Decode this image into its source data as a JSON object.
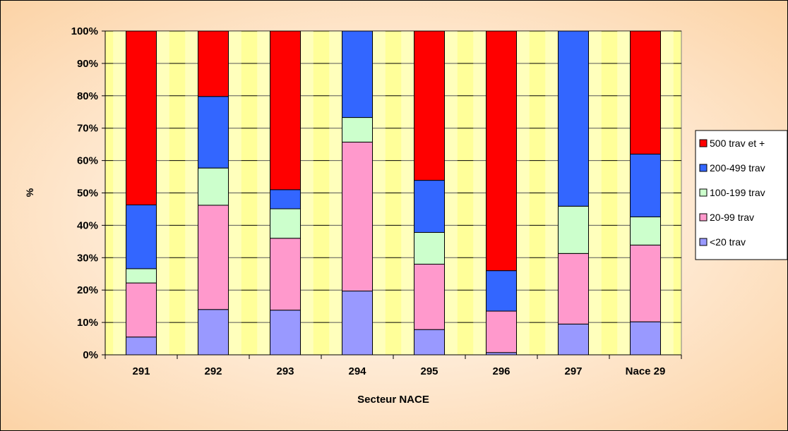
{
  "chart_data": {
    "type": "bar",
    "stacked": true,
    "categories": [
      "291",
      "292",
      "293",
      "294",
      "295",
      "296",
      "297",
      "Nace 29"
    ],
    "xlabel": "Secteur NACE",
    "ylabel": "%",
    "ylim": [
      0,
      100
    ],
    "y_ticks": [
      "0%",
      "10%",
      "20%",
      "30%",
      "40%",
      "50%",
      "60%",
      "70%",
      "80%",
      "90%",
      "100%"
    ],
    "grid": true,
    "legend_position": "right",
    "series": [
      {
        "name": "<20 trav",
        "color": "#9999ff",
        "values": [
          5.5,
          14,
          13.8,
          19.7,
          7.8,
          0.7,
          9.5,
          10.2
        ]
      },
      {
        "name": "20-99 trav",
        "color": "#ff99cc",
        "values": [
          16.7,
          32.2,
          22.2,
          46.0,
          20.2,
          12.8,
          21.8,
          23.7
        ]
      },
      {
        "name": "100-199 trav",
        "color": "#ccffcc",
        "values": [
          4.4,
          11.5,
          9.1,
          7.6,
          9.8,
          0,
          14.6,
          8.7
        ]
      },
      {
        "name": "200-499 trav",
        "color": "#3366ff",
        "values": [
          19.7,
          22.1,
          5.9,
          26.7,
          16.1,
          12.5,
          54.1,
          19.4
        ]
      },
      {
        "name": "500 trav et +",
        "color": "#ff0000",
        "values": [
          53.7,
          20.2,
          49.0,
          0,
          46.1,
          74.0,
          0,
          38.0
        ]
      }
    ],
    "legend_order": [
      "500 trav et +",
      "200-499 trav",
      "100-199 trav",
      "20-99 trav",
      "<20 trav"
    ],
    "plot_background": "#ffff99"
  }
}
